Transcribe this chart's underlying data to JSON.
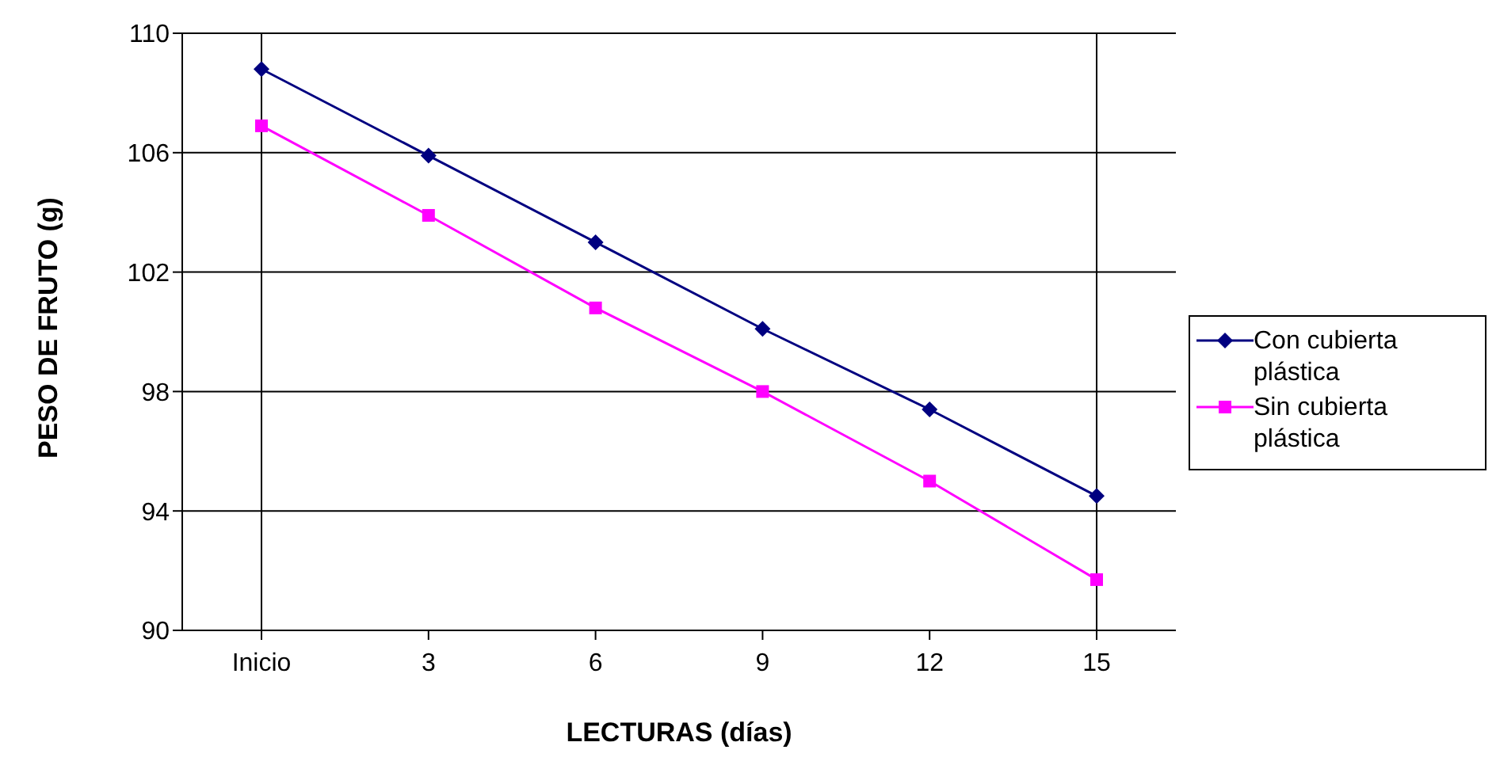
{
  "chart_data": {
    "type": "line",
    "xlabel": "LECTURAS (días)",
    "ylabel": "PESO DE FRUTO (g)",
    "categories": [
      "Inicio",
      "3",
      "6",
      "9",
      "12",
      "15"
    ],
    "series": [
      {
        "name": "Con cubierta plástica",
        "color": "#000080",
        "marker": "diamond",
        "values": [
          108.8,
          105.9,
          103.0,
          100.1,
          97.4,
          94.5
        ]
      },
      {
        "name": "Sin cubierta plástica",
        "color": "#ff00ff",
        "marker": "square",
        "values": [
          106.9,
          103.9,
          100.8,
          98.0,
          95.0,
          91.7
        ]
      }
    ],
    "ylim": [
      90,
      110
    ],
    "yticks": [
      90,
      94,
      98,
      102,
      106,
      110
    ],
    "grid": "y",
    "legend": "right",
    "line_style": "solid"
  }
}
